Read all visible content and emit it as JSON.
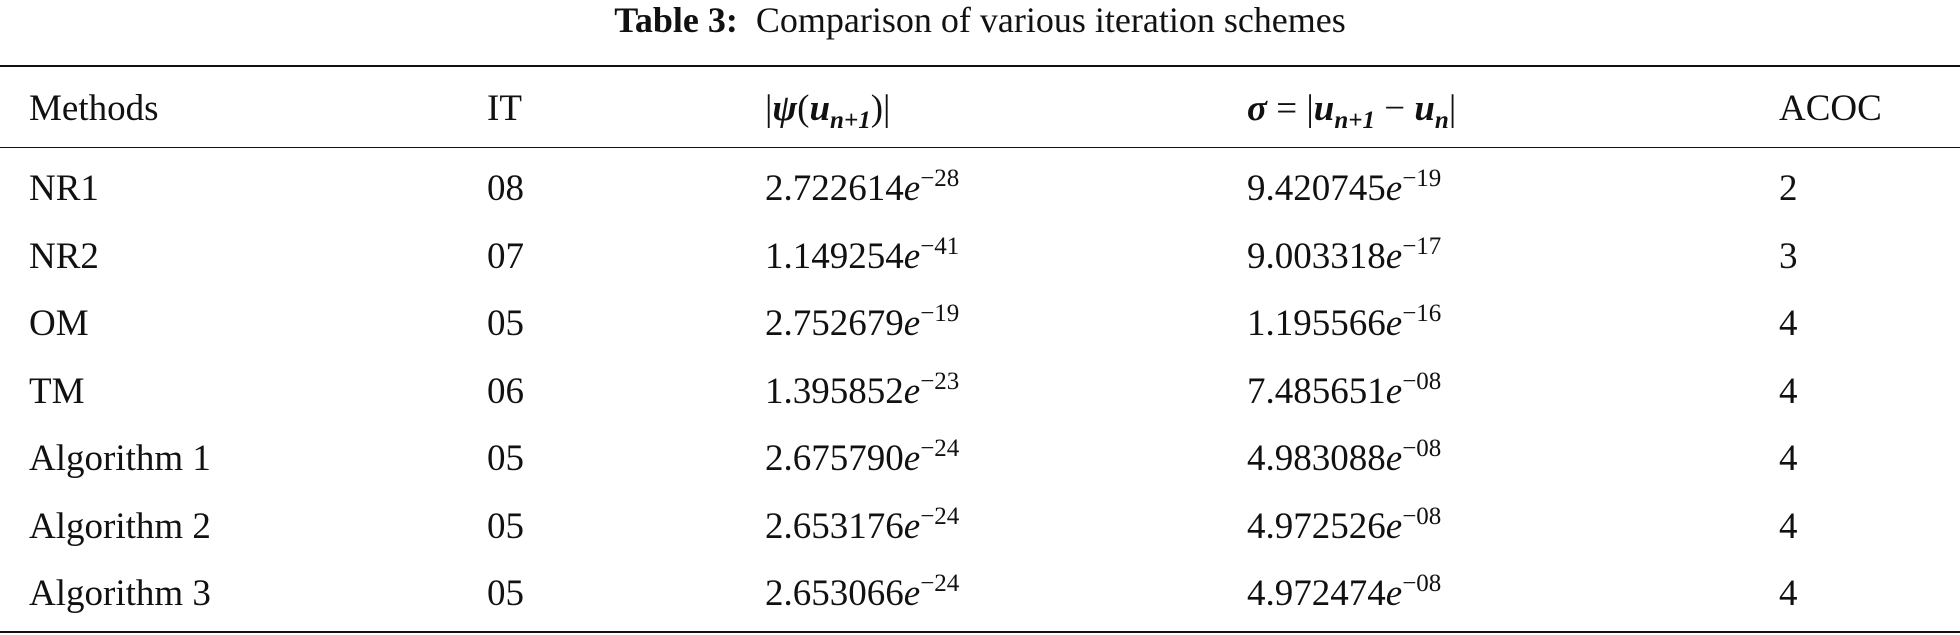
{
  "caption": {
    "label": "Table 3:",
    "text": "Comparison of various iteration schemes"
  },
  "table": {
    "header": [
      [
        "Methods"
      ],
      [
        "IT"
      ],
      [
        "|",
        "ψ",
        "(",
        "u",
        "n+1",
        ")|"
      ],
      [
        "σ",
        " = |",
        "u",
        "n+1",
        " − ",
        "u",
        "n",
        "|"
      ],
      [
        "ACOC"
      ]
    ],
    "rows": [
      [
        "NR1",
        "08",
        {
          "mantissa": "2.722614",
          "base": "e",
          "exponent": "−28"
        },
        {
          "mantissa": "9.420745",
          "base": "e",
          "exponent": "−19"
        },
        "2"
      ],
      [
        "NR2",
        "07",
        {
          "mantissa": "1.149254",
          "base": "e",
          "exponent": "−41"
        },
        {
          "mantissa": "9.003318",
          "base": "e",
          "exponent": "−17"
        },
        "3"
      ],
      [
        "OM",
        "05",
        {
          "mantissa": "2.752679",
          "base": "e",
          "exponent": "−19"
        },
        {
          "mantissa": "1.195566",
          "base": "e",
          "exponent": "−16"
        },
        "4"
      ],
      [
        "TM",
        "06",
        {
          "mantissa": "1.395852",
          "base": "e",
          "exponent": "−23"
        },
        {
          "mantissa": "7.485651",
          "base": "e",
          "exponent": "−08"
        },
        "4"
      ],
      [
        "Algorithm 1",
        "05",
        {
          "mantissa": "2.675790",
          "base": "e",
          "exponent": "−24"
        },
        {
          "mantissa": "4.983088",
          "base": "e",
          "exponent": "−08"
        },
        "4"
      ],
      [
        "Algorithm 2",
        "05",
        {
          "mantissa": "2.653176",
          "base": "e",
          "exponent": "−24"
        },
        {
          "mantissa": "4.972526",
          "base": "e",
          "exponent": "−08"
        },
        "4"
      ],
      [
        "Algorithm 3",
        "05",
        {
          "mantissa": "2.653066",
          "base": "e",
          "exponent": "−24"
        },
        {
          "mantissa": "4.972474",
          "base": "e",
          "exponent": "−08"
        },
        "4"
      ]
    ]
  }
}
